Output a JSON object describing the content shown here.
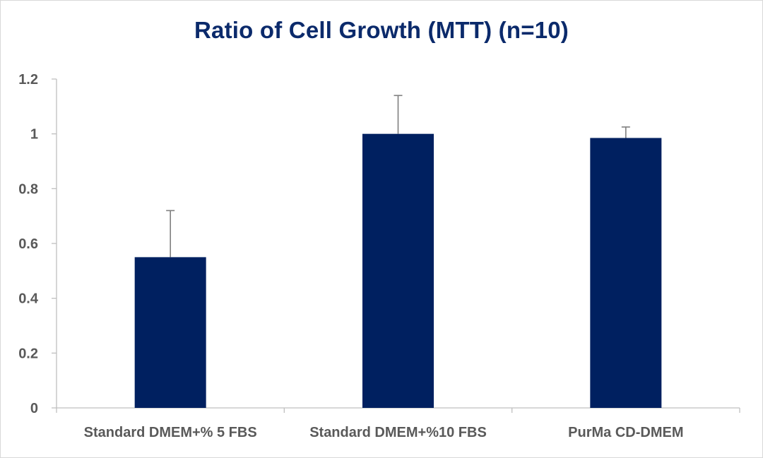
{
  "chart_data": {
    "type": "bar",
    "title": "Ratio of Cell Growth (MTT) (n=10)",
    "xlabel": "",
    "ylabel": "",
    "categories": [
      "Standard DMEM+% 5 FBS",
      "Standard DMEM+%10 FBS",
      "PurMa CD-DMEM"
    ],
    "values": [
      0.55,
      1.0,
      0.985
    ],
    "error_upper": [
      0.17,
      0.14,
      0.04
    ],
    "ylim": [
      0,
      1.2
    ],
    "yticks": [
      "0",
      "0.2",
      "0.4",
      "0.6",
      "0.8",
      "1",
      "1.2"
    ],
    "ytick_values": [
      0,
      0.2,
      0.4,
      0.6,
      0.8,
      1.0,
      1.2
    ],
    "grid": false,
    "legend": "none",
    "bar_color": "#002060",
    "error_bar_color": "#7f7f7f",
    "axis_color": "#bfbfbf",
    "title_color": "#0b2a6b"
  }
}
